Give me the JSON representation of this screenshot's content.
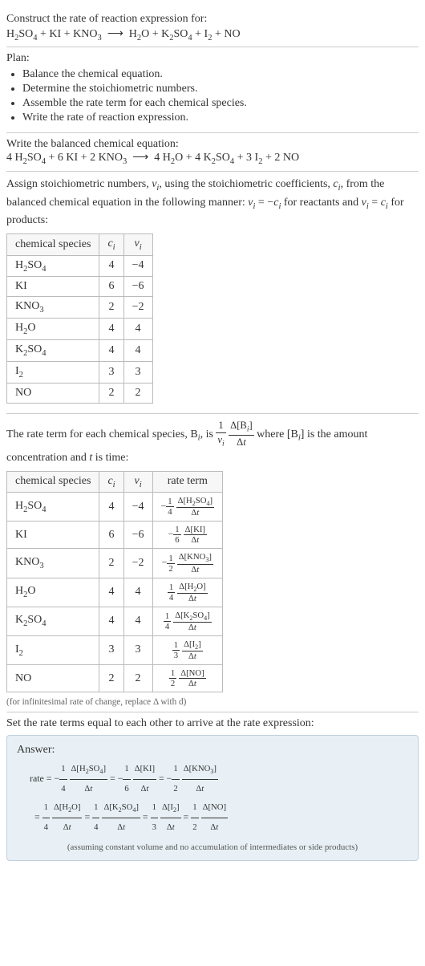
{
  "intro": {
    "prompt": "Construct the rate of reaction expression for:",
    "equation_html": "H<span class='sub'>2</span>SO<span class='sub'>4</span> + KI + KNO<span class='sub'>3</span> &nbsp;⟶&nbsp; H<span class='sub'>2</span>O + K<span class='sub'>2</span>SO<span class='sub'>4</span> + I<span class='sub'>2</span> + NO"
  },
  "plan": {
    "heading": "Plan:",
    "items": [
      "Balance the chemical equation.",
      "Determine the stoichiometric numbers.",
      "Assemble the rate term for each chemical species.",
      "Write the rate of reaction expression."
    ]
  },
  "balanced": {
    "heading": "Write the balanced chemical equation:",
    "equation_html": "4 H<span class='sub'>2</span>SO<span class='sub'>4</span> + 6 KI + 2 KNO<span class='sub'>3</span> &nbsp;⟶&nbsp; 4 H<span class='sub'>2</span>O + 4 K<span class='sub'>2</span>SO<span class='sub'>4</span> + 3 I<span class='sub'>2</span> + 2 NO"
  },
  "assign": {
    "text_html": "Assign stoichiometric numbers, <i>ν<span class='sub'>i</span></i>, using the stoichiometric coefficients, <i>c<span class='sub'>i</span></i>, from the balanced chemical equation in the following manner: <i>ν<span class='sub'>i</span></i> = −<i>c<span class='sub'>i</span></i> for reactants and <i>ν<span class='sub'>i</span></i> = <i>c<span class='sub'>i</span></i> for products:",
    "table_headers": [
      "chemical species",
      "cᵢ",
      "νᵢ"
    ],
    "rows": [
      {
        "species_html": "H<span class='sub'>2</span>SO<span class='sub'>4</span>",
        "c": "4",
        "v": "−4"
      },
      {
        "species_html": "KI",
        "c": "6",
        "v": "−6"
      },
      {
        "species_html": "KNO<span class='sub'>3</span>",
        "c": "2",
        "v": "−2"
      },
      {
        "species_html": "H<span class='sub'>2</span>O",
        "c": "4",
        "v": "4"
      },
      {
        "species_html": "K<span class='sub'>2</span>SO<span class='sub'>4</span>",
        "c": "4",
        "v": "4"
      },
      {
        "species_html": "I<span class='sub'>2</span>",
        "c": "3",
        "v": "3"
      },
      {
        "species_html": "NO",
        "c": "2",
        "v": "2"
      }
    ]
  },
  "rateterm": {
    "text_html": "The rate term for each chemical species, B<span class='sub'><i>i</i></span>, is <span class='frac'><span class='num'>1</span><span class='den'><i>ν<span class='sub'>i</span></i></span></span> <span class='frac'><span class='num'>Δ[B<span class='sub'><i>i</i></span>]</span><span class='den'>Δ<i>t</i></span></span> where [B<span class='sub'><i>i</i></span>] is the amount concentration and <i>t</i> is time:",
    "table_headers": [
      "chemical species",
      "cᵢ",
      "νᵢ",
      "rate term"
    ],
    "rows": [
      {
        "species_html": "H<span class='sub'>2</span>SO<span class='sub'>4</span>",
        "c": "4",
        "v": "−4",
        "rate_html": "−<span class='frac'><span class='num'>1</span><span class='den'>4</span></span> <span class='frac'><span class='num'>Δ[H<span class='sub'>2</span>SO<span class='sub'>4</span>]</span><span class='den'>Δ<i>t</i></span></span>"
      },
      {
        "species_html": "KI",
        "c": "6",
        "v": "−6",
        "rate_html": "−<span class='frac'><span class='num'>1</span><span class='den'>6</span></span> <span class='frac'><span class='num'>Δ[KI]</span><span class='den'>Δ<i>t</i></span></span>"
      },
      {
        "species_html": "KNO<span class='sub'>3</span>",
        "c": "2",
        "v": "−2",
        "rate_html": "−<span class='frac'><span class='num'>1</span><span class='den'>2</span></span> <span class='frac'><span class='num'>Δ[KNO<span class='sub'>3</span>]</span><span class='den'>Δ<i>t</i></span></span>"
      },
      {
        "species_html": "H<span class='sub'>2</span>O",
        "c": "4",
        "v": "4",
        "rate_html": "<span class='frac'><span class='num'>1</span><span class='den'>4</span></span> <span class='frac'><span class='num'>Δ[H<span class='sub'>2</span>O]</span><span class='den'>Δ<i>t</i></span></span>"
      },
      {
        "species_html": "K<span class='sub'>2</span>SO<span class='sub'>4</span>",
        "c": "4",
        "v": "4",
        "rate_html": "<span class='frac'><span class='num'>1</span><span class='den'>4</span></span> <span class='frac'><span class='num'>Δ[K<span class='sub'>2</span>SO<span class='sub'>4</span>]</span><span class='den'>Δ<i>t</i></span></span>"
      },
      {
        "species_html": "I<span class='sub'>2</span>",
        "c": "3",
        "v": "3",
        "rate_html": "<span class='frac'><span class='num'>1</span><span class='den'>3</span></span> <span class='frac'><span class='num'>Δ[I<span class='sub'>2</span>]</span><span class='den'>Δ<i>t</i></span></span>"
      },
      {
        "species_html": "NO",
        "c": "2",
        "v": "2",
        "rate_html": "<span class='frac'><span class='num'>1</span><span class='den'>2</span></span> <span class='frac'><span class='num'>Δ[NO]</span><span class='den'>Δ<i>t</i></span></span>"
      }
    ],
    "note": "(for infinitesimal rate of change, replace Δ with d)"
  },
  "final": {
    "heading": "Set the rate terms equal to each other to arrive at the rate expression:",
    "answer_label": "Answer:",
    "answer_html": "rate = −<span class='frac'><span class='num'>1</span><span class='den'>4</span></span> <span class='frac'><span class='num'>Δ[H<span class='sub'>2</span>SO<span class='sub'>4</span>]</span><span class='den'>Δ<i>t</i></span></span> = −<span class='frac'><span class='num'>1</span><span class='den'>6</span></span> <span class='frac'><span class='num'>Δ[KI]</span><span class='den'>Δ<i>t</i></span></span> = −<span class='frac'><span class='num'>1</span><span class='den'>2</span></span> <span class='frac'><span class='num'>Δ[KNO<span class='sub'>3</span>]</span><span class='den'>Δ<i>t</i></span></span><br>&nbsp;&nbsp;= <span class='frac'><span class='num'>1</span><span class='den'>4</span></span> <span class='frac'><span class='num'>Δ[H<span class='sub'>2</span>O]</span><span class='den'>Δ<i>t</i></span></span> = <span class='frac'><span class='num'>1</span><span class='den'>4</span></span> <span class='frac'><span class='num'>Δ[K<span class='sub'>2</span>SO<span class='sub'>4</span>]</span><span class='den'>Δ<i>t</i></span></span> = <span class='frac'><span class='num'>1</span><span class='den'>3</span></span> <span class='frac'><span class='num'>Δ[I<span class='sub'>2</span>]</span><span class='den'>Δ<i>t</i></span></span> = <span class='frac'><span class='num'>1</span><span class='den'>2</span></span> <span class='frac'><span class='num'>Δ[NO]</span><span class='den'>Δ<i>t</i></span></span>",
    "answer_note": "(assuming constant volume and no accumulation of intermediates or side products)"
  },
  "colors": {
    "border": "#cccccc",
    "table_border": "#bbbbbb",
    "answer_bg": "#e8f0f5",
    "answer_border": "#c0d0dc",
    "text": "#333333"
  }
}
